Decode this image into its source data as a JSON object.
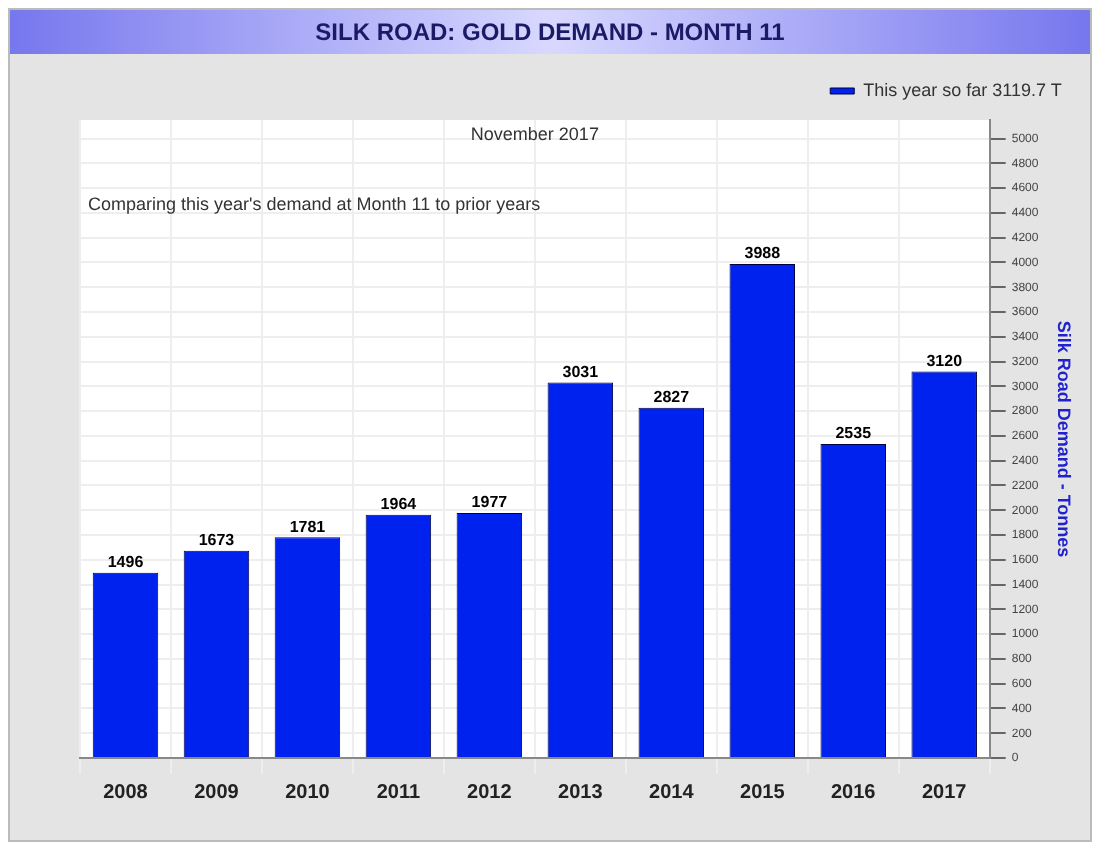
{
  "chart_data": {
    "type": "bar",
    "title": "SILK ROAD: GOLD DEMAND - MONTH 11",
    "subtitle": "November 2017",
    "ylabel": "Silk Road Demand - Tonnes",
    "annotations": [
      "Comparing this year's demand at Month 11 to prior years"
    ],
    "categories": [
      "2008",
      "2009",
      "2010",
      "2011",
      "2012",
      "2013",
      "2014",
      "2015",
      "2016",
      "2017"
    ],
    "series": [
      {
        "name": "This year so far 3119.7 T",
        "color": "#0022ee",
        "values": [
          1496,
          1673,
          1781,
          1964,
          1977,
          3031,
          2827,
          3988,
          2535,
          3120
        ]
      }
    ],
    "data_labels": true,
    "ylim": [
      0,
      5150
    ],
    "yticks": [
      0,
      200,
      400,
      600,
      800,
      1000,
      1200,
      1400,
      1600,
      1800,
      2000,
      2200,
      2400,
      2600,
      2800,
      3000,
      3200,
      3400,
      3600,
      3800,
      4000,
      4200,
      4400,
      4600,
      4800,
      5000
    ],
    "grid": true,
    "legend": "top right"
  }
}
